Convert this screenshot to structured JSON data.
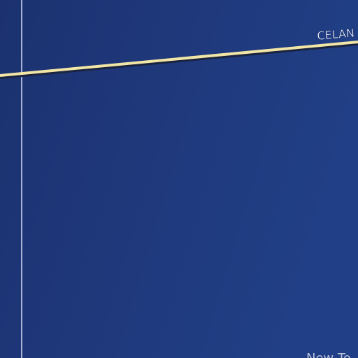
{
  "map": {
    "road_label": "CELAN",
    "place_label": "New To"
  }
}
